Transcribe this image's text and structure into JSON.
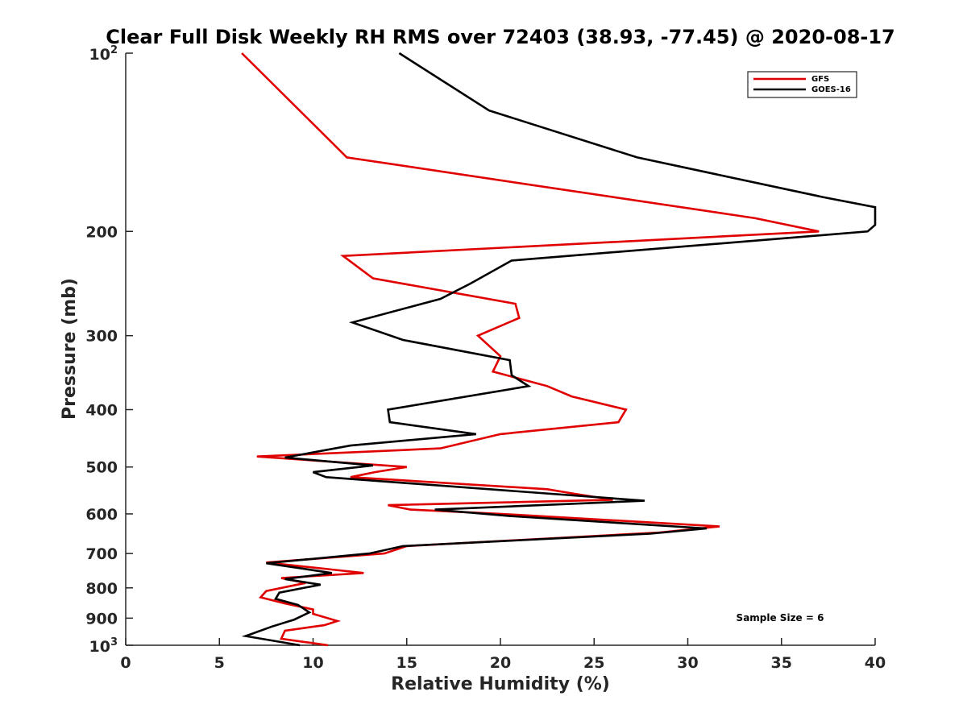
{
  "chart_data": {
    "type": "line",
    "title": "Clear Full Disk Weekly RH RMS over 72403 (38.93, -77.45) @ 2020-08-17",
    "xlabel": "Relative Humidity (%)",
    "ylabel": "Pressure (mb)",
    "xlim": [
      0,
      40
    ],
    "ylim": [
      100,
      1000
    ],
    "y_scale": "log",
    "y_reversed": true,
    "grid": false,
    "legend_position": "top-right",
    "x_ticks": [
      "0",
      "5",
      "10",
      "15",
      "20",
      "25",
      "30",
      "35",
      "40"
    ],
    "y_ticks": [
      {
        "value": 100,
        "base": "10",
        "exp": "2"
      },
      {
        "value": 200,
        "label": "200"
      },
      {
        "value": 300,
        "label": "300"
      },
      {
        "value": 400,
        "label": "400"
      },
      {
        "value": 500,
        "label": "500"
      },
      {
        "value": 600,
        "label": "600"
      },
      {
        "value": 700,
        "label": "700"
      },
      {
        "value": 800,
        "label": "800"
      },
      {
        "value": 900,
        "label": "900"
      },
      {
        "value": 1000,
        "base": "10",
        "exp": "3"
      }
    ],
    "annotation": "Sample Size = 6",
    "series": [
      {
        "name": "GFS",
        "color": "#e00000",
        "points": [
          [
            6.2,
            100
          ],
          [
            11.8,
            150
          ],
          [
            33.6,
            190
          ],
          [
            37.0,
            200
          ],
          [
            11.6,
            220
          ],
          [
            13.2,
            240
          ],
          [
            20.8,
            265
          ],
          [
            21.0,
            280
          ],
          [
            18.8,
            300
          ],
          [
            20.0,
            325
          ],
          [
            19.6,
            345
          ],
          [
            22.5,
            365
          ],
          [
            23.8,
            380
          ],
          [
            26.7,
            400
          ],
          [
            26.3,
            420
          ],
          [
            20.0,
            440
          ],
          [
            16.8,
            465
          ],
          [
            7.0,
            480
          ],
          [
            15.0,
            500
          ],
          [
            13.3,
            510
          ],
          [
            12.0,
            520
          ],
          [
            22.5,
            545
          ],
          [
            24.0,
            555
          ],
          [
            26.0,
            568
          ],
          [
            14.0,
            580
          ],
          [
            15.2,
            590
          ],
          [
            20.0,
            600
          ],
          [
            31.7,
            630
          ],
          [
            28.5,
            645
          ],
          [
            15.0,
            680
          ],
          [
            13.8,
            700
          ],
          [
            7.5,
            725
          ],
          [
            11.0,
            745
          ],
          [
            12.7,
            755
          ],
          [
            8.3,
            770
          ],
          [
            9.6,
            785
          ],
          [
            7.5,
            810
          ],
          [
            7.2,
            830
          ],
          [
            8.5,
            850
          ],
          [
            10.0,
            870
          ],
          [
            10.0,
            885
          ],
          [
            11.3,
            910
          ],
          [
            10.6,
            925
          ],
          [
            8.5,
            945
          ],
          [
            8.3,
            975
          ],
          [
            10.8,
            1000
          ]
        ]
      },
      {
        "name": "GOES-16",
        "color": "#000000",
        "points": [
          [
            14.6,
            100
          ],
          [
            19.4,
            125
          ],
          [
            27.3,
            150
          ],
          [
            37.2,
            175
          ],
          [
            40.0,
            182
          ],
          [
            40.0,
            195
          ],
          [
            39.6,
            200
          ],
          [
            20.6,
            224
          ],
          [
            18.4,
            245
          ],
          [
            16.8,
            260
          ],
          [
            12.1,
            285
          ],
          [
            14.8,
            305
          ],
          [
            20.5,
            330
          ],
          [
            20.6,
            350
          ],
          [
            21.5,
            365
          ],
          [
            14.0,
            400
          ],
          [
            14.1,
            420
          ],
          [
            18.7,
            440
          ],
          [
            12.0,
            460
          ],
          [
            8.5,
            482
          ],
          [
            13.2,
            497
          ],
          [
            10.0,
            510
          ],
          [
            10.7,
            520
          ],
          [
            27.7,
            570
          ],
          [
            16.5,
            590
          ],
          [
            20.5,
            605
          ],
          [
            31.0,
            635
          ],
          [
            28.0,
            648
          ],
          [
            14.8,
            680
          ],
          [
            13.0,
            700
          ],
          [
            7.5,
            727
          ],
          [
            11.0,
            755
          ],
          [
            8.5,
            773
          ],
          [
            10.4,
            790
          ],
          [
            8.2,
            815
          ],
          [
            8.0,
            835
          ],
          [
            9.2,
            855
          ],
          [
            9.8,
            880
          ],
          [
            9.0,
            905
          ],
          [
            7.8,
            930
          ],
          [
            6.4,
            965
          ],
          [
            9.3,
            1000
          ]
        ]
      }
    ]
  }
}
